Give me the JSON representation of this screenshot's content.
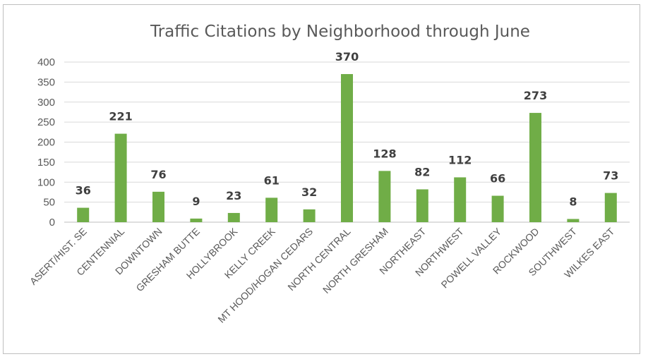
{
  "chart_data": {
    "type": "bar",
    "title": "Traffic Citations by Neighborhood through June",
    "xlabel": "",
    "ylabel": "",
    "categories": [
      "ASERT/HIST. SE",
      "CENTENNIAL",
      "DOWNTOWN",
      "GRESHAM BUTTE",
      "HOLLYBROOK",
      "KELLY CREEK",
      "MT HOOD/HOGAN CEDARS",
      "NORTH CENTRAL",
      "NORTH GRESHAM",
      "NORTHEAST",
      "NORTHWEST",
      "POWELL VALLEY",
      "ROCKWOOD",
      "SOUTHWEST",
      "WILKES EAST"
    ],
    "values": [
      36,
      221,
      76,
      9,
      23,
      61,
      32,
      370,
      128,
      82,
      112,
      66,
      273,
      8,
      73
    ],
    "ylim": [
      0,
      400
    ],
    "yticks": [
      0,
      50,
      100,
      150,
      200,
      250,
      300,
      350,
      400
    ],
    "grid": true,
    "legend": "none",
    "bar_color": "#70ad47",
    "gridline_color": "#d9d9d9",
    "text_color": "#595959",
    "data_label_color": "#404040"
  }
}
